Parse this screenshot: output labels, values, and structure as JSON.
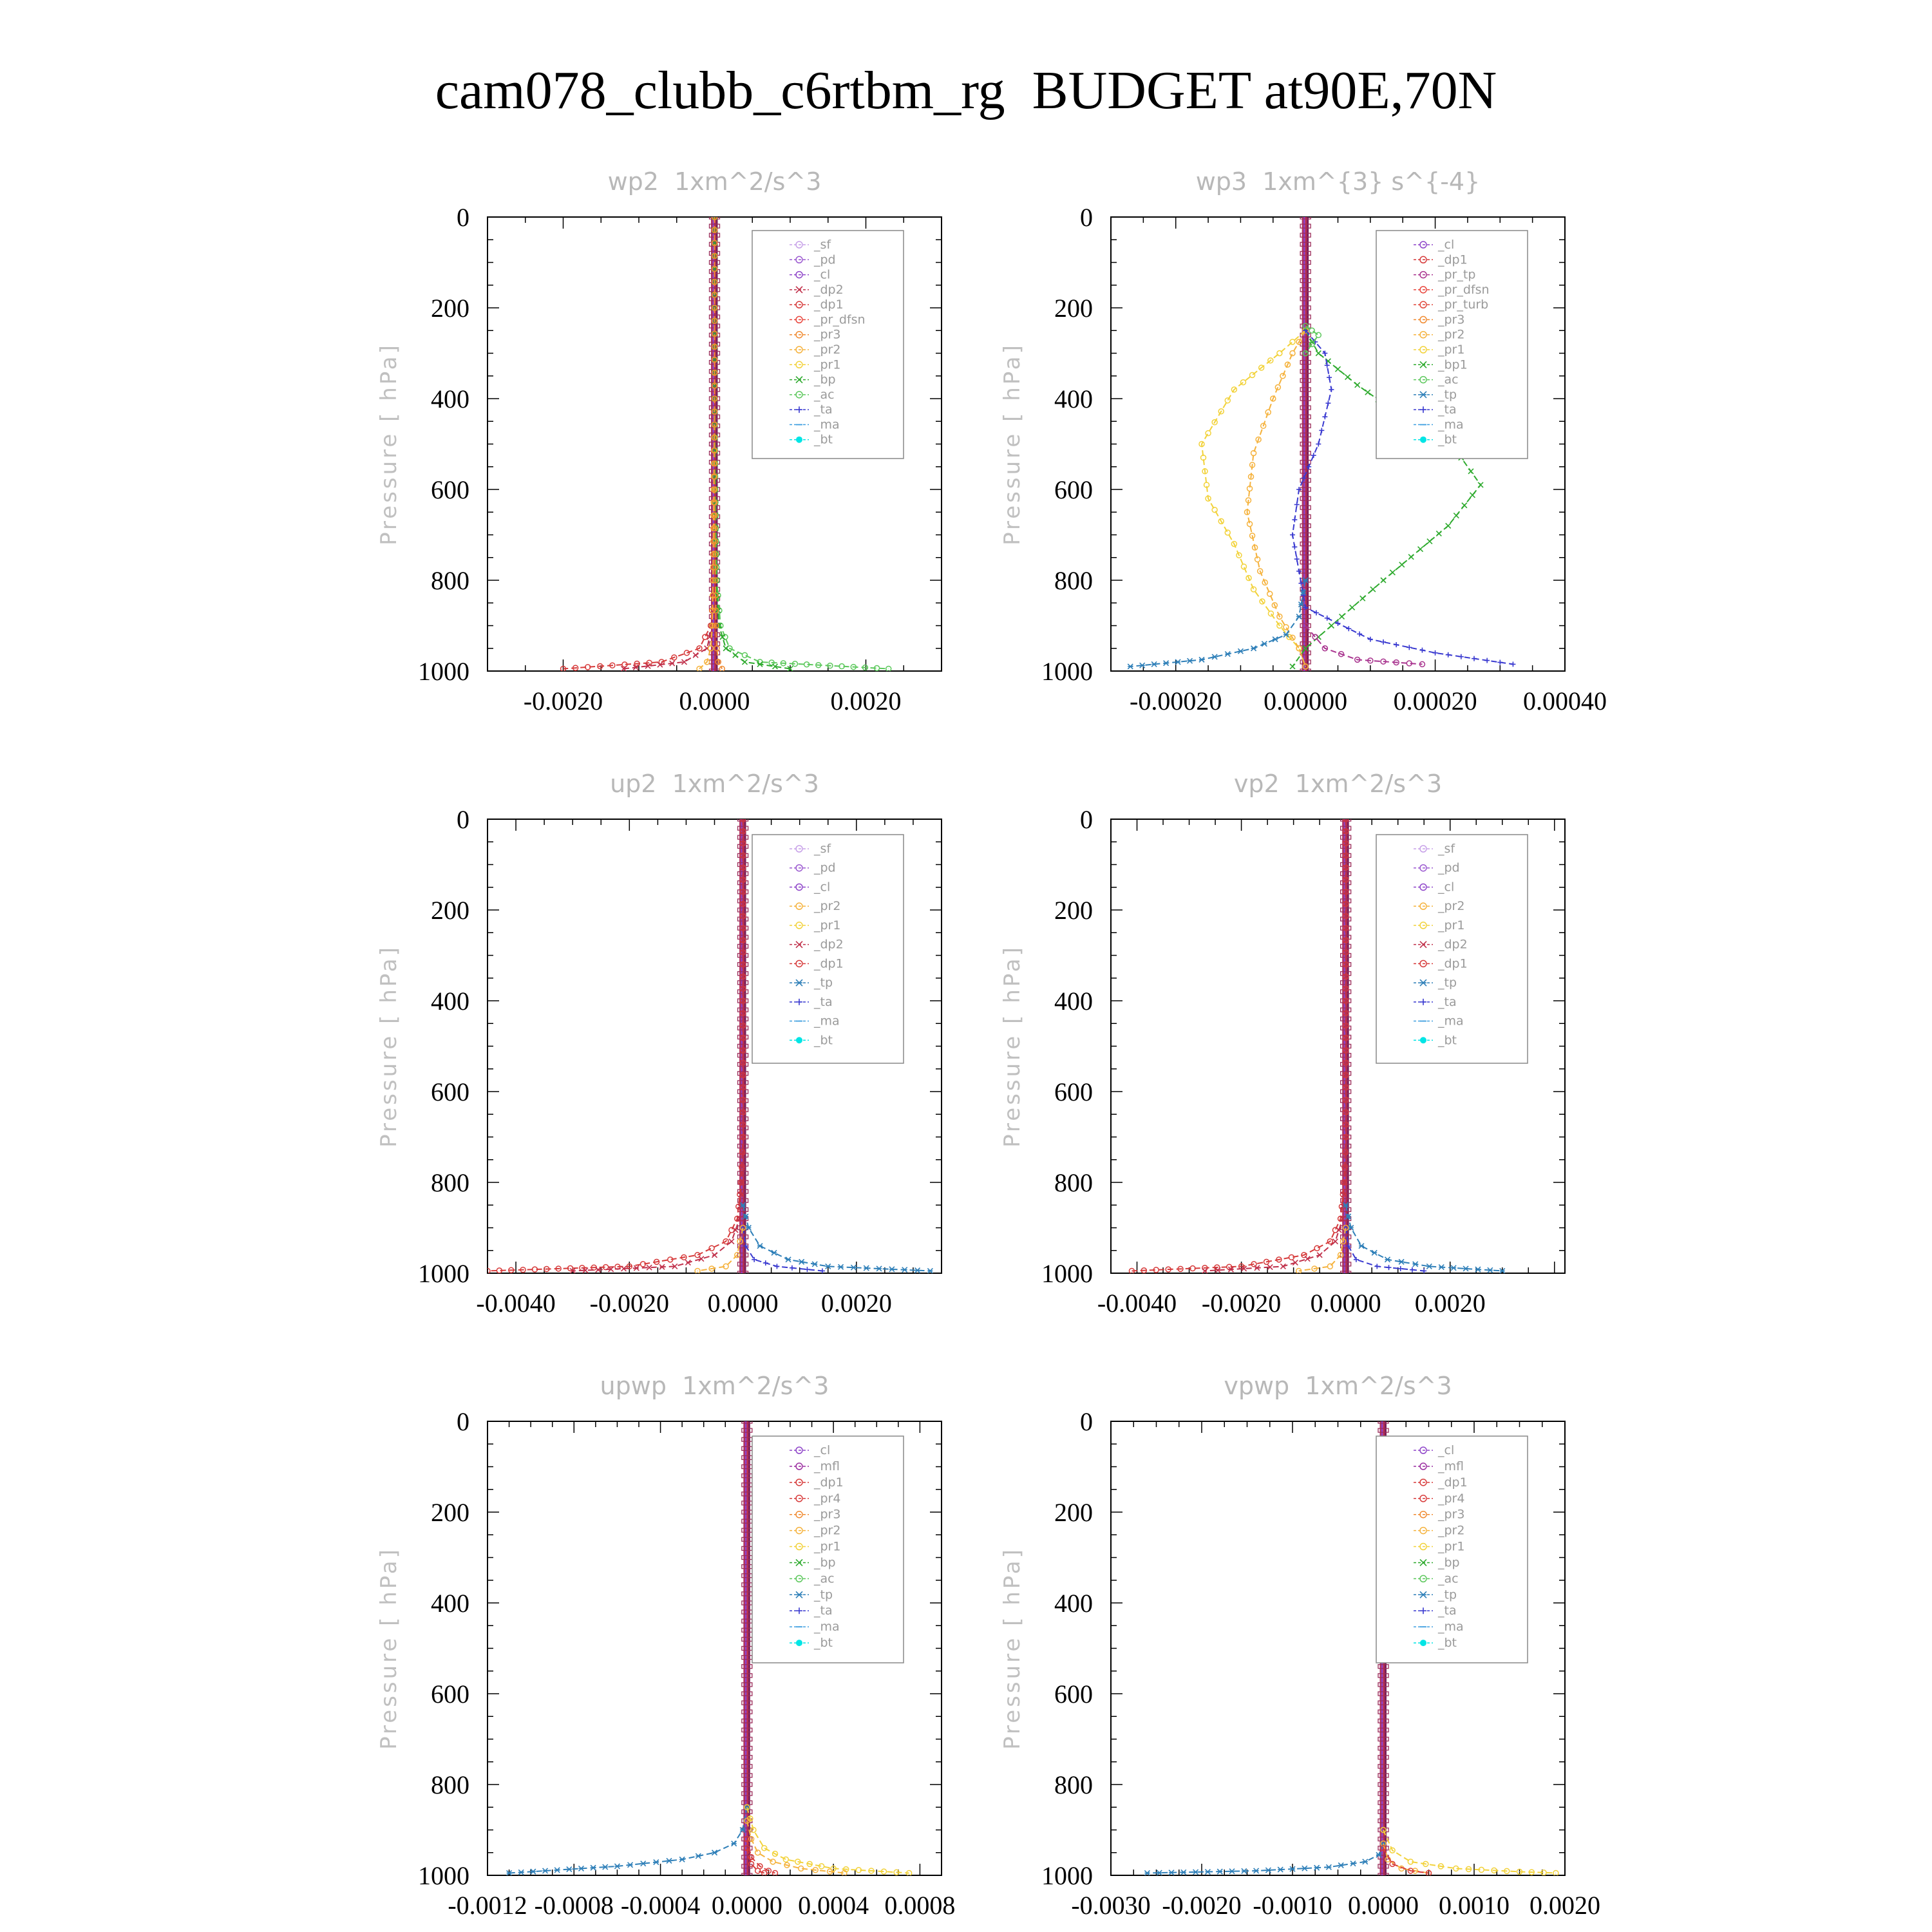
{
  "figure": {
    "title": "cam078_clubb_c6rtbm_rg  BUDGET at90E,70N",
    "ylabel": "Pressure [ hPa]"
  },
  "colors": {
    "_sf": "#c7a0e8",
    "_pd": "#9b59d0",
    "_cl": "#8e44c9",
    "_mfl": "#9b2da0",
    "_dp2": "#c0304a",
    "_dp1": "#d63a3a",
    "_pr_dfsn": "#e8453c",
    "_pr_tp": "#a8328e",
    "_pr_turb": "#e0463a",
    "_pr4": "#d83c3c",
    "_pr3": "#f08a30",
    "_pr2": "#f5b23c",
    "_pr1": "#f2d23a",
    "_bp": "#2eaa2e",
    "_bp1": "#2eaa2e",
    "_ac": "#5cc85c",
    "_tp": "#2e7fb8",
    "_ta": "#3a3ad0",
    "_ma": "#40a0e0",
    "_bt": "#00e5e5"
  },
  "chart_data": [
    {
      "type": "line",
      "title": "wp2  1xm^2/s^3",
      "ylabel": "Pressure [ hPa]",
      "xlim": [
        -0.003,
        0.003
      ],
      "ylim": [
        1000,
        0
      ],
      "xticks": [
        -0.002,
        0.0,
        0.002
      ],
      "xtick_labels": [
        "-0.0020",
        "0.0000",
        "0.0020"
      ],
      "yticks": [
        0,
        200,
        400,
        600,
        800,
        1000
      ],
      "ytick_labels": [
        "0",
        "200",
        "400",
        "600",
        "800",
        "1000"
      ],
      "legend": [
        "_sf",
        "_pd",
        "_cl",
        "_dp2",
        "_dp1",
        "_pr_dfsn",
        "_pr3",
        "_pr2",
        "_pr1",
        "_bp",
        "_ac",
        "_ta",
        "_ma",
        "_bt"
      ],
      "series": [
        {
          "key": "_dp1",
          "x": [
            0,
            0,
            0,
            0,
            0,
            -5e-05,
            -0.0002,
            -0.0007,
            -0.002
          ],
          "y": [
            0,
            200,
            400,
            600,
            800,
            900,
            950,
            980,
            995
          ]
        },
        {
          "key": "_dp2",
          "x": [
            0,
            0,
            0,
            0,
            0,
            -3e-05,
            -0.0001,
            -0.0004,
            -0.0012
          ],
          "y": [
            0,
            200,
            400,
            600,
            800,
            900,
            950,
            980,
            995
          ]
        },
        {
          "key": "_ac",
          "x": [
            0,
            0,
            0,
            1e-05,
            3e-05,
            8e-05,
            0.0002,
            0.0006,
            0.0023
          ],
          "y": [
            0,
            200,
            400,
            600,
            800,
            900,
            950,
            980,
            995
          ]
        },
        {
          "key": "_bp",
          "x": [
            0,
            0,
            0,
            1e-05,
            2e-05,
            6e-05,
            0.00015,
            0.0004,
            0.001
          ],
          "y": [
            0,
            200,
            400,
            600,
            800,
            900,
            950,
            980,
            995
          ]
        },
        {
          "key": "_pr2",
          "x": [
            0,
            0,
            0,
            -1e-05,
            -2e-05,
            -3e-05,
            -5e-05,
            -0.0001,
            -0.0002
          ],
          "y": [
            0,
            200,
            400,
            600,
            800,
            900,
            950,
            980,
            995
          ]
        },
        {
          "key": "_pr3",
          "x": [
            0,
            0,
            0,
            0,
            1e-05,
            2e-05,
            3e-05,
            5e-05,
            0.0001
          ],
          "y": [
            0,
            200,
            400,
            600,
            800,
            900,
            950,
            980,
            995
          ]
        }
      ]
    },
    {
      "type": "line",
      "title": "wp3  1xm^{3} s^{-4}",
      "ylabel": "Pressure [ hPa]",
      "xlim": [
        -0.0003,
        0.0004
      ],
      "ylim": [
        1000,
        0
      ],
      "xticks": [
        -0.0002,
        0.0,
        0.0002,
        0.0004
      ],
      "xtick_labels": [
        "-0.00020",
        "0.00000",
        "0.00020",
        "0.00040"
      ],
      "yticks": [
        0,
        200,
        400,
        600,
        800,
        1000
      ],
      "ytick_labels": [
        "0",
        "200",
        "400",
        "600",
        "800",
        "1000"
      ],
      "legend": [
        "_cl",
        "_dp1",
        "_pr_tp",
        "_pr_dfsn",
        "_pr_turb",
        "_pr3",
        "_pr2",
        "_pr1",
        "_bp1",
        "_ac",
        "_tp",
        "_ta",
        "_ma",
        "_bt"
      ],
      "series": [
        {
          "key": "_bp1",
          "x": [
            0,
            2e-05,
            8e-05,
            0.00016,
            0.00024,
            0.00027,
            0.00022,
            0.00012,
            4e-05,
            0.0,
            -2e-05
          ],
          "y": [
            250,
            300,
            370,
            450,
            530,
            590,
            680,
            800,
            900,
            950,
            990
          ]
        },
        {
          "key": "_pr1",
          "x": [
            0,
            -4e-05,
            -0.00011,
            -0.00016,
            -0.00015,
            -0.00011,
            -8e-05,
            -4e-05,
            -1e-05,
            0
          ],
          "y": [
            250,
            300,
            380,
            500,
            620,
            720,
            820,
            900,
            950,
            990
          ]
        },
        {
          "key": "_pr2",
          "x": [
            0,
            -2e-05,
            -5e-05,
            -8e-05,
            -9e-05,
            -7e-05,
            -4e-05,
            -1e-05,
            0
          ],
          "y": [
            250,
            300,
            400,
            520,
            650,
            780,
            880,
            950,
            990
          ]
        },
        {
          "key": "_ta",
          "x": [
            0,
            3e-05,
            4e-05,
            2e-05,
            -1e-05,
            -2e-05,
            0,
            0.0001,
            0.0002,
            0.00032
          ],
          "y": [
            250,
            300,
            380,
            500,
            600,
            700,
            860,
            930,
            960,
            985
          ]
        },
        {
          "key": "_tp",
          "x": [
            0,
            -1e-05,
            -3e-05,
            -8e-05,
            -0.00016,
            -0.00027
          ],
          "y": [
            800,
            880,
            920,
            950,
            975,
            990
          ]
        },
        {
          "key": "_pr_tp",
          "x": [
            0,
            3e-05,
            8e-05,
            0.00018
          ],
          "y": [
            900,
            950,
            975,
            985
          ]
        },
        {
          "key": "_ac",
          "x": [
            0,
            1e-05,
            2e-05,
            1e-05,
            0
          ],
          "y": [
            240,
            250,
            260,
            280,
            300
          ]
        }
      ]
    },
    {
      "type": "line",
      "title": "up2  1xm^2/s^3",
      "ylabel": "Pressure [ hPa]",
      "xlim": [
        -0.0045,
        0.0035
      ],
      "ylim": [
        1000,
        0
      ],
      "xticks": [
        -0.004,
        -0.002,
        0.0,
        0.002
      ],
      "xtick_labels": [
        "-0.0040",
        "-0.0020",
        "0.0000",
        "0.0020"
      ],
      "yticks": [
        0,
        200,
        400,
        600,
        800,
        1000
      ],
      "ytick_labels": [
        "0",
        "200",
        "400",
        "600",
        "800",
        "1000"
      ],
      "legend": [
        "_sf",
        "_pd",
        "_cl",
        "_pr2",
        "_pr1",
        "_dp2",
        "_dp1",
        "_tp",
        "_ta",
        "_ma",
        "_bt"
      ],
      "series": [
        {
          "key": "_dp1",
          "x": [
            0,
            0,
            0,
            -3e-05,
            -0.0001,
            -0.0003,
            -0.0008,
            -0.002,
            -0.0045
          ],
          "y": [
            0,
            400,
            700,
            800,
            880,
            930,
            960,
            985,
            995
          ]
        },
        {
          "key": "_dp2",
          "x": [
            0,
            0,
            0,
            -2e-05,
            -6e-05,
            -0.0002,
            -0.0005,
            -0.0012,
            -0.003
          ],
          "y": [
            0,
            400,
            700,
            800,
            880,
            930,
            960,
            985,
            995
          ]
        },
        {
          "key": "_tp",
          "x": [
            0,
            0.0001,
            0.0003,
            0.0008,
            0.0015,
            0.0033
          ],
          "y": [
            850,
            900,
            940,
            970,
            985,
            995
          ]
        },
        {
          "key": "_ta",
          "x": [
            0,
            5e-05,
            0.0002,
            0.0006,
            0.0014
          ],
          "y": [
            900,
            940,
            970,
            985,
            995
          ]
        },
        {
          "key": "_pr2",
          "x": [
            0,
            -0.0001,
            -0.0003,
            -0.0008
          ],
          "y": [
            900,
            960,
            985,
            995
          ]
        }
      ]
    },
    {
      "type": "line",
      "title": "vp2  1xm^2/s^3",
      "ylabel": "Pressure [ hPa]",
      "xlim": [
        -0.0045,
        0.0042
      ],
      "ylim": [
        1000,
        0
      ],
      "xticks": [
        -0.004,
        -0.002,
        0.0,
        0.002
      ],
      "xtick_labels": [
        "-0.0040",
        "-0.0020",
        "0.0000",
        "0.0020"
      ],
      "yticks": [
        0,
        200,
        400,
        600,
        800,
        1000
      ],
      "ytick_labels": [
        "0",
        "200",
        "400",
        "600",
        "800",
        "1000"
      ],
      "legend": [
        "_sf",
        "_pd",
        "_cl",
        "_pr2",
        "_pr1",
        "_dp2",
        "_dp1",
        "_tp",
        "_ta",
        "_ma",
        "_bt"
      ],
      "series": [
        {
          "key": "_dp1",
          "x": [
            0,
            0,
            0,
            -3e-05,
            -0.0001,
            -0.0003,
            -0.0008,
            -0.002,
            -0.0041
          ],
          "y": [
            0,
            400,
            700,
            800,
            880,
            930,
            960,
            985,
            995
          ]
        },
        {
          "key": "_dp2",
          "x": [
            0,
            0,
            0,
            -2e-05,
            -6e-05,
            -0.0002,
            -0.0005,
            -0.0012,
            -0.0027
          ],
          "y": [
            0,
            400,
            700,
            800,
            880,
            930,
            960,
            985,
            995
          ]
        },
        {
          "key": "_tp",
          "x": [
            0,
            0.0001,
            0.0003,
            0.0008,
            0.0016,
            0.003
          ],
          "y": [
            850,
            900,
            940,
            970,
            985,
            995
          ]
        },
        {
          "key": "_ta",
          "x": [
            0,
            5e-05,
            0.0002,
            0.0006,
            0.0015
          ],
          "y": [
            900,
            940,
            970,
            985,
            995
          ]
        },
        {
          "key": "_pr2",
          "x": [
            0,
            -0.0001,
            -0.0003,
            -0.0009
          ],
          "y": [
            900,
            960,
            985,
            995
          ]
        }
      ]
    },
    {
      "type": "line",
      "title": "upwp  1xm^2/s^3",
      "ylabel": "Pressure [ hPa]",
      "xlim": [
        -0.0012,
        0.0009
      ],
      "ylim": [
        1000,
        0
      ],
      "xticks": [
        -0.0012,
        -0.0008,
        -0.0004,
        0.0,
        0.0004,
        0.0008
      ],
      "xtick_labels": [
        "-0.0012",
        "-0.0008",
        "-0.0004",
        "0.0000",
        "0.0004",
        "0.0008"
      ],
      "yticks": [
        0,
        200,
        400,
        600,
        800,
        1000
      ],
      "ytick_labels": [
        "0",
        "200",
        "400",
        "600",
        "800",
        "1000"
      ],
      "legend": [
        "_cl",
        "_mfl",
        "_dp1",
        "_pr4",
        "_pr3",
        "_pr2",
        "_pr1",
        "_bp",
        "_ac",
        "_tp",
        "_ta",
        "_ma",
        "_bt"
      ],
      "series": [
        {
          "key": "_tp",
          "x": [
            0,
            -2e-05,
            -6e-05,
            -0.00015,
            -0.0003,
            -0.0006,
            -0.0011
          ],
          "y": [
            850,
            900,
            930,
            950,
            965,
            980,
            995
          ]
        },
        {
          "key": "_pr1",
          "x": [
            0,
            3e-05,
            8e-05,
            0.00018,
            0.0004,
            0.00075
          ],
          "y": [
            850,
            900,
            940,
            965,
            985,
            995
          ]
        },
        {
          "key": "_pr2",
          "x": [
            0,
            2e-05,
            5e-05,
            0.00012,
            0.00025,
            0.00045
          ],
          "y": [
            880,
            920,
            950,
            970,
            985,
            995
          ]
        },
        {
          "key": "_pr4",
          "x": [
            0,
            2e-05,
            6e-05,
            0.0001,
            0.00013
          ],
          "y": [
            920,
            960,
            980,
            990,
            995
          ]
        },
        {
          "key": "_dp1",
          "x": [
            0,
            2e-05,
            5e-05,
            8e-05
          ],
          "y": [
            940,
            975,
            990,
            995
          ]
        }
      ]
    },
    {
      "type": "line",
      "title": "vpwp  1xm^2/s^3",
      "ylabel": "Pressure [ hPa]",
      "xlim": [
        -0.003,
        0.002
      ],
      "ylim": [
        1000,
        0
      ],
      "xticks": [
        -0.003,
        -0.002,
        -0.001,
        0.0,
        0.001,
        0.002
      ],
      "xtick_labels": [
        "-0.0030",
        "-0.0020",
        "-0.0010",
        "0.0000",
        "0.0010",
        "0.0020"
      ],
      "yticks": [
        0,
        200,
        400,
        600,
        800,
        1000
      ],
      "ytick_labels": [
        "0",
        "200",
        "400",
        "600",
        "800",
        "1000"
      ],
      "legend": [
        "_cl",
        "_mfl",
        "_dp1",
        "_pr4",
        "_pr3",
        "_pr2",
        "_pr1",
        "_bp",
        "_ac",
        "_tp",
        "_ta",
        "_ma",
        "_bt"
      ],
      "series": [
        {
          "key": "_tp",
          "x": [
            0,
            -5e-05,
            -0.0002,
            -0.0006,
            -0.0014,
            -0.0026
          ],
          "y": [
            930,
            955,
            970,
            982,
            990,
            995
          ]
        },
        {
          "key": "_pr1",
          "x": [
            0,
            0.0001,
            0.0003,
            0.0008,
            0.0015,
            0.0019
          ],
          "y": [
            900,
            945,
            970,
            985,
            992,
            995
          ]
        },
        {
          "key": "_pr2",
          "x": [
            0,
            5e-05,
            0.0002,
            0.0005
          ],
          "y": [
            930,
            965,
            985,
            995
          ]
        },
        {
          "key": "_pr4",
          "x": [
            0,
            0.0001,
            0.0003,
            0.0005
          ],
          "y": [
            940,
            975,
            990,
            995
          ]
        }
      ]
    }
  ]
}
